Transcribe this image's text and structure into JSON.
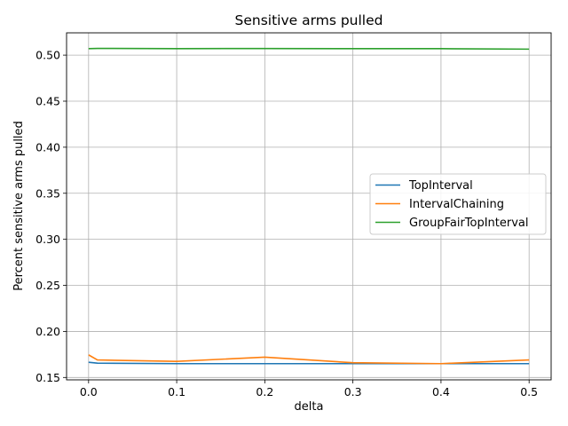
{
  "chart_data": {
    "type": "line",
    "title": "Sensitive arms pulled",
    "xlabel": "delta",
    "ylabel": "Percent sensitive arms pulled",
    "xlim": [
      -0.025,
      0.525
    ],
    "ylim": [
      0.1474,
      0.5242
    ],
    "x_ticks": [
      0.0,
      0.1,
      0.2,
      0.3,
      0.4,
      0.5
    ],
    "x_tick_labels": [
      "0.0",
      "0.1",
      "0.2",
      "0.3",
      "0.4",
      "0.5"
    ],
    "y_ticks": [
      0.15,
      0.2,
      0.25,
      0.3,
      0.35,
      0.4,
      0.45,
      0.5
    ],
    "y_tick_labels": [
      "0.15",
      "0.20",
      "0.25",
      "0.30",
      "0.35",
      "0.40",
      "0.45",
      "0.50"
    ],
    "grid": true,
    "legend_position": "center-right",
    "series": [
      {
        "name": "TopInterval",
        "color": "#1f77b4",
        "x": [
          0.0,
          0.01,
          0.1,
          0.2,
          0.3,
          0.4,
          0.5
        ],
        "y": [
          0.1665,
          0.1655,
          0.165,
          0.165,
          0.165,
          0.165,
          0.165
        ]
      },
      {
        "name": "IntervalChaining",
        "color": "#ff7f0e",
        "x": [
          0.0,
          0.01,
          0.1,
          0.2,
          0.3,
          0.4,
          0.5
        ],
        "y": [
          0.1745,
          0.169,
          0.1675,
          0.172,
          0.166,
          0.165,
          0.169
        ]
      },
      {
        "name": "GroupFairTopInterval",
        "color": "#2ca02c",
        "x": [
          0.0,
          0.01,
          0.1,
          0.2,
          0.3,
          0.4,
          0.5
        ],
        "y": [
          0.507,
          0.5073,
          0.507,
          0.5072,
          0.507,
          0.507,
          0.5065
        ]
      }
    ]
  }
}
